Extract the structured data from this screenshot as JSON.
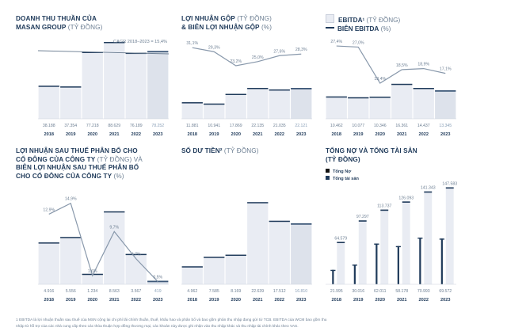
{
  "titles": {
    "c1": {
      "line1": "DOANH THU THUẦN CỦA",
      "line2": "MASAN GROUP",
      "unit": " (TỶ ĐỒNG)"
    },
    "c2": {
      "line1": "LỢI NHUẬN GỘP",
      "unit1": " (TỶ ĐỒNG)",
      "line2": "& BIÊN LỢI NHUẬN GỘP",
      "unit2": " (%)"
    },
    "c3": {
      "label1": "EBITDA¹",
      "unit1": " (TỶ ĐỒNG)",
      "label2": "BIÊN EBITDA",
      "unit2": " (%)"
    },
    "c4": {
      "line1": "LỢI NHUẬN SAU THUẾ PHÂN BỔ CHO",
      "line2a": "CỔ ĐÔNG CỦA CÔNG TY",
      "unit2": " (TỶ ĐỒNG) VÀ",
      "line3": "BIÊN LỢI NHUẬN SAU THUẾ PHÂN BỔ",
      "line4": "CHO CỔ ĐÔNG CỦA CÔNG TY",
      "unit4": " (%)"
    },
    "c5": {
      "line1": "SỐ DƯ TIỀN²",
      "unit": " (TỶ ĐỒNG)"
    },
    "c6": {
      "line1": "TỔNG NỢ VÀ TỔNG TÀI SẢN",
      "line2": "(TỶ ĐỒNG)"
    }
  },
  "footnote": {
    "line1": "1   EBITDA là lợi nhuận thuần sau thuế của MSN cộng lại chi phí lãi chính thuần, thuế, khấu hao và phân bổ và bao gồm phân thu nhập đang gửi từ TCB. EBITDA của WCM bao gồm thu",
    "line2": "     nhập từ hỗ trợ của các nhà cung cấp theo các thỏa thuận hợp đồng thương mại, các khoản này được ghi nhận vào thu nhập khác và thu nhập tài chính khác theo VAS."
  },
  "colors": {
    "bar": "#e9ecf3",
    "bar_last": "#dde2eb",
    "cap": "#1f3a5a",
    "line": "#8898ab",
    "navy": "#1f3a5a",
    "text": "#1f3a5a",
    "muted": "#6d7f93"
  },
  "chart_data": [
    {
      "id": "c1",
      "type": "bar",
      "categories": [
        "2018",
        "2019",
        "2020",
        "2021",
        "2022",
        "2023"
      ],
      "values": [
        38188,
        37354,
        77218,
        88629,
        76189,
        78252
      ],
      "value_labels": [
        "38.188",
        "37.354",
        "77.218",
        "88.629",
        "76.189",
        "78.252"
      ],
      "annotation": "CAGR 2018–2023 = 15,4%",
      "ylim": [
        0,
        95000
      ]
    },
    {
      "id": "c2",
      "type": "bar",
      "categories": [
        "2018",
        "2019",
        "2020",
        "2021",
        "2022",
        "2023"
      ],
      "values": [
        11881,
        10941,
        17869,
        22135,
        21035,
        22121
      ],
      "value_labels": [
        "11.881",
        "10.941",
        "17.869",
        "22.135",
        "21.035",
        "22.121"
      ],
      "ylim": [
        0,
        59000
      ],
      "margin": {
        "values": [
          31.1,
          29.3,
          23.2,
          25.0,
          27.6,
          28.3
        ],
        "labels": [
          "31,1%",
          "29,3%",
          "23,2%",
          "25,0%",
          "27,6%",
          "28,3%"
        ],
        "ylim": [
          0,
          36
        ]
      }
    },
    {
      "id": "c3",
      "type": "bar",
      "categories": [
        "2018",
        "2019",
        "2020",
        "2021",
        "2022",
        "2023"
      ],
      "values": [
        10462,
        10077,
        10346,
        16361,
        14437,
        13345
      ],
      "value_labels": [
        "10.462",
        "10.077",
        "10.346",
        "16.361",
        "14.437",
        "13.345"
      ],
      "ylim": [
        0,
        38500
      ],
      "margin": {
        "values": [
          27.4,
          27.0,
          13.4,
          18.5,
          18.9,
          17.1
        ],
        "labels": [
          "27,4%",
          "27,0%",
          "13,4%",
          "18,5%",
          "18,9%",
          "17,1%"
        ],
        "ylim": [
          0,
          31
        ]
      }
    },
    {
      "id": "c4",
      "type": "bar",
      "categories": [
        "2018",
        "2019",
        "2020",
        "2021",
        "2022",
        "2023"
      ],
      "values": [
        4916,
        5556,
        1234,
        8563,
        3567,
        419
      ],
      "value_labels": [
        "4.916",
        "5.556",
        "1.234",
        "8.563",
        "3.567",
        "419"
      ],
      "ylim": [
        0,
        11800
      ],
      "margin": {
        "values": [
          12.9,
          14.9,
          1.6,
          9.7,
          4.7,
          0.5
        ],
        "labels": [
          "12,9%",
          "14,9%",
          "1,6%",
          "9,7%",
          "4,7%",
          "0,5%"
        ],
        "ylim": [
          0,
          18.5
        ]
      }
    },
    {
      "id": "c5",
      "type": "bar",
      "categories": [
        "2018",
        "2019",
        "2020",
        "2021",
        "2022",
        "2023"
      ],
      "values": [
        4962,
        7585,
        8169,
        22639,
        17512,
        16810
      ],
      "value_labels": [
        "4.962",
        "7.585",
        "8.169",
        "22.639",
        "17.512",
        "16.810"
      ],
      "ylim": [
        0,
        27700
      ]
    },
    {
      "id": "c6",
      "type": "bar",
      "categories": [
        "2018",
        "2019",
        "2020",
        "2021",
        "2022",
        "2023"
      ],
      "series": [
        {
          "name": "Tổng Nợ",
          "values": [
            21995,
            30016,
            62011,
            58178,
            70993,
            69572
          ],
          "value_labels": [
            "21.995",
            "30.016",
            "62.011",
            "58.178",
            "70.993",
            "69.572"
          ]
        },
        {
          "name": "Tổng tài sản",
          "values": [
            64579,
            97297,
            113737,
            126093,
            141343,
            147583
          ],
          "value_labels": [
            "64.579",
            "97.297",
            "113.737",
            "126.093",
            "141.343",
            "147.583"
          ]
        }
      ],
      "ylim": [
        0,
        153000
      ]
    }
  ]
}
